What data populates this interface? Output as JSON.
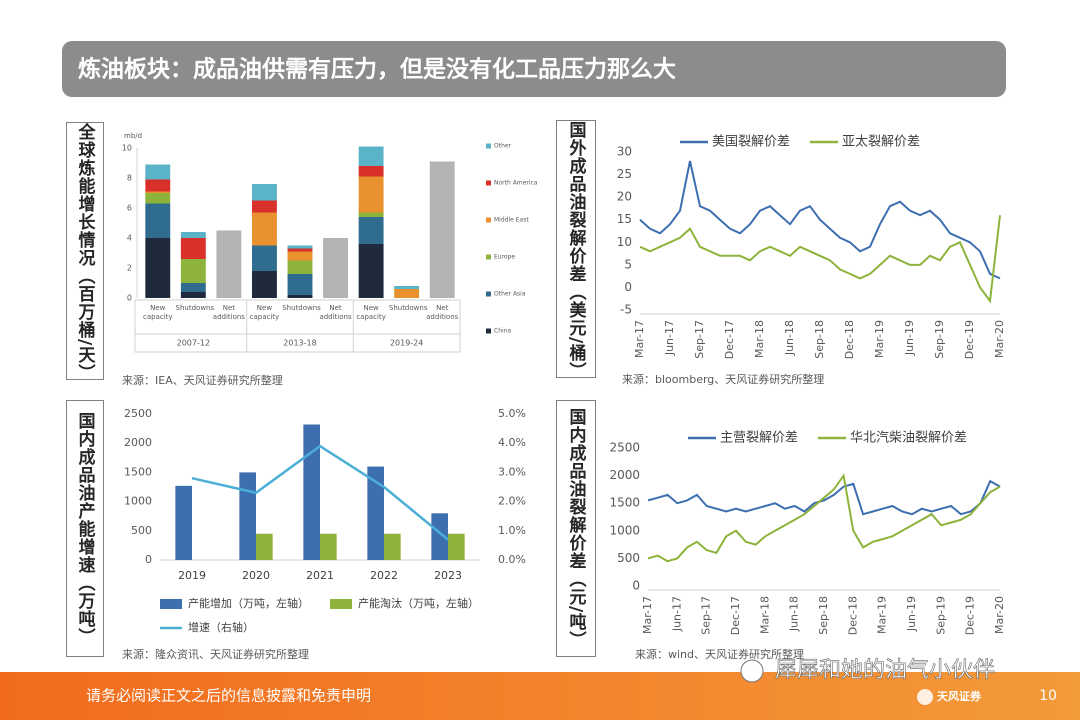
{
  "title": "炼油板块：成品油供需有压力，但是没有化工品压力那么大",
  "panels": [
    {
      "side_label": "全球炼能增长情况（百万桶/天）",
      "source": "来源：IEA、天风证券研究所整理"
    },
    {
      "side_label": "国外成品油裂解价差（美元/桶）",
      "source": "来源：bloomberg、天风证券研究所整理"
    },
    {
      "side_label": "国内成品油产能增速（万吨）",
      "source": "来源：隆众资讯、天风证券研究所整理"
    },
    {
      "side_label": "国内成品油裂解价差（元/吨）",
      "source": "来源：wind、天风证券研究所整理"
    }
  ],
  "chart_data": [
    {
      "type": "stacked-bar",
      "y_label": "mb/d",
      "categories": [
        "New capacity",
        "Shutdowns",
        "Net additions",
        "New capacity",
        "Shutdowns",
        "Net additions",
        "New capacity",
        "Shutdowns",
        "Net additions"
      ],
      "groups": [
        "2007-12",
        "2013-18",
        "2019-24"
      ],
      "series": [
        {
          "name": "China",
          "color": "#1f2a3c",
          "values": [
            4.0,
            0.4,
            null,
            1.8,
            0.2,
            null,
            3.6,
            null,
            null
          ]
        },
        {
          "name": "Other Asia",
          "color": "#2f6c8f",
          "values": [
            2.3,
            0.6,
            null,
            1.7,
            1.4,
            null,
            1.8,
            null,
            null
          ]
        },
        {
          "name": "Europe",
          "color": "#8db33a",
          "values": [
            0.7,
            1.6,
            null,
            null,
            0.9,
            null,
            0.3,
            null,
            null
          ]
        },
        {
          "name": "Middle East",
          "color": "#e8912e",
          "values": [
            0.1,
            null,
            null,
            2.2,
            0.6,
            null,
            2.4,
            0.6,
            null
          ]
        },
        {
          "name": "North America",
          "color": "#d9302b",
          "values": [
            0.8,
            1.4,
            null,
            0.8,
            0.2,
            null,
            0.7,
            null,
            null
          ]
        },
        {
          "name": "Other",
          "color": "#5bb3c8",
          "values": [
            1.0,
            0.4,
            null,
            1.1,
            0.2,
            null,
            1.3,
            0.2,
            null
          ]
        },
        {
          "color": "#b3b3b3",
          "values": [
            null,
            null,
            4.5,
            null,
            null,
            4.0,
            null,
            null,
            9.1
          ]
        }
      ],
      "ylim": [
        0,
        10
      ],
      "yticks": [
        0,
        2,
        4,
        6,
        8,
        10
      ]
    },
    {
      "type": "line",
      "x": [
        "Mar-17",
        null,
        null,
        "Jun-17",
        null,
        null,
        "Sep-17",
        null,
        null,
        "Dec-17",
        null,
        null,
        "Mar-18",
        null,
        null,
        "Jun-18",
        null,
        null,
        "Sep-18",
        null,
        null,
        "Dec-18",
        null,
        null,
        "Mar-19",
        null,
        null,
        "Jun-19",
        null,
        null,
        "Sep-19",
        null,
        null,
        "Dec-19",
        null,
        null,
        "Mar-20"
      ],
      "series": [
        {
          "name": "美国裂解价差",
          "color": "#3d6fb0",
          "values": [
            15,
            13,
            12,
            14,
            17,
            28,
            18,
            17,
            15,
            13,
            12,
            14,
            17,
            18,
            16,
            14,
            17,
            18,
            15,
            13,
            11,
            10,
            8,
            9,
            14,
            18,
            19,
            17,
            16,
            17,
            15,
            12,
            11,
            10,
            8,
            3,
            2
          ]
        },
        {
          "name": "亚太裂解价差",
          "color": "#8db33a",
          "values": [
            9,
            8,
            9,
            10,
            11,
            13,
            9,
            8,
            7,
            7,
            7,
            6,
            8,
            9,
            8,
            7,
            9,
            8,
            7,
            6,
            4,
            3,
            2,
            3,
            5,
            7,
            6,
            5,
            5,
            7,
            6,
            9,
            10,
            5,
            0,
            -3,
            16
          ]
        }
      ],
      "ylim": [
        -5,
        30
      ],
      "yticks": [
        -5,
        0,
        5,
        10,
        15,
        20,
        25,
        30
      ]
    },
    {
      "type": "bar-line",
      "categories": [
        "2019",
        "2020",
        "2021",
        "2022",
        "2023"
      ],
      "series": [
        {
          "name": "产能增加（万吨，左轴）",
          "type": "bar",
          "color": "#3d6fb0",
          "values": [
            1270,
            1500,
            2320,
            1600,
            800
          ]
        },
        {
          "name": "产能淘汰（万吨，左轴）",
          "type": "bar",
          "color": "#8db33a",
          "values": [
            null,
            450,
            450,
            450,
            450
          ]
        },
        {
          "name": "增速（右轴）",
          "type": "line",
          "axis": "y2",
          "color": "#4aaed6",
          "values": [
            2.8,
            2.3,
            3.9,
            2.5,
            0.7
          ]
        }
      ],
      "ylim": [
        0,
        2500
      ],
      "yticks": [
        0,
        500,
        1000,
        1500,
        2000,
        2500
      ],
      "y2lim": [
        0,
        5
      ],
      "y2ticks": [
        {
          "value": 0,
          "label": "0.0%"
        },
        {
          "value": 1,
          "label": "1.0%"
        },
        {
          "value": 2,
          "label": "2.0%"
        },
        {
          "value": 3,
          "label": "3.0%"
        },
        {
          "value": 4,
          "label": "4.0%"
        },
        {
          "value": 5,
          "label": "5.0%"
        }
      ]
    },
    {
      "type": "line",
      "x": [
        "Mar-17",
        null,
        null,
        "Jun-17",
        null,
        null,
        "Sep-17",
        null,
        null,
        "Dec-17",
        null,
        null,
        "Mar-18",
        null,
        null,
        "Jun-18",
        null,
        null,
        "Sep-18",
        null,
        null,
        "Dec-18",
        null,
        null,
        "Mar-19",
        null,
        null,
        "Jun-19",
        null,
        null,
        "Sep-19",
        null,
        null,
        "Dec-19",
        null,
        null,
        "Mar-20"
      ],
      "series": [
        {
          "name": "主营裂解价差",
          "color": "#3d6fb0",
          "values": [
            1550,
            1600,
            1650,
            1500,
            1550,
            1650,
            1450,
            1400,
            1350,
            1400,
            1350,
            1400,
            1450,
            1500,
            1400,
            1450,
            1350,
            1500,
            1550,
            1650,
            1800,
            1850,
            1300,
            1350,
            1400,
            1450,
            1350,
            1300,
            1400,
            1350,
            1400,
            1450,
            1300,
            1350,
            1500,
            1900,
            1800
          ]
        },
        {
          "name": "华北汽柴油裂解价差",
          "color": "#8db33a",
          "values": [
            500,
            550,
            450,
            500,
            700,
            800,
            650,
            600,
            900,
            1000,
            800,
            750,
            900,
            1000,
            1100,
            1200,
            1300,
            1450,
            1600,
            1750,
            2000,
            1000,
            700,
            800,
            850,
            900,
            1000,
            1100,
            1200,
            1300,
            1100,
            1150,
            1200,
            1300,
            1500,
            1700,
            1800
          ]
        }
      ],
      "ylim": [
        0,
        2500
      ],
      "yticks": [
        0,
        500,
        1000,
        1500,
        2000,
        2500
      ]
    }
  ],
  "footer": {
    "disclaimer": "请务必阅读正文之后的信息披露和免责申明",
    "page": 10,
    "watermark": "犀犀和她的油气小伙伴",
    "logo": "天风证券"
  }
}
